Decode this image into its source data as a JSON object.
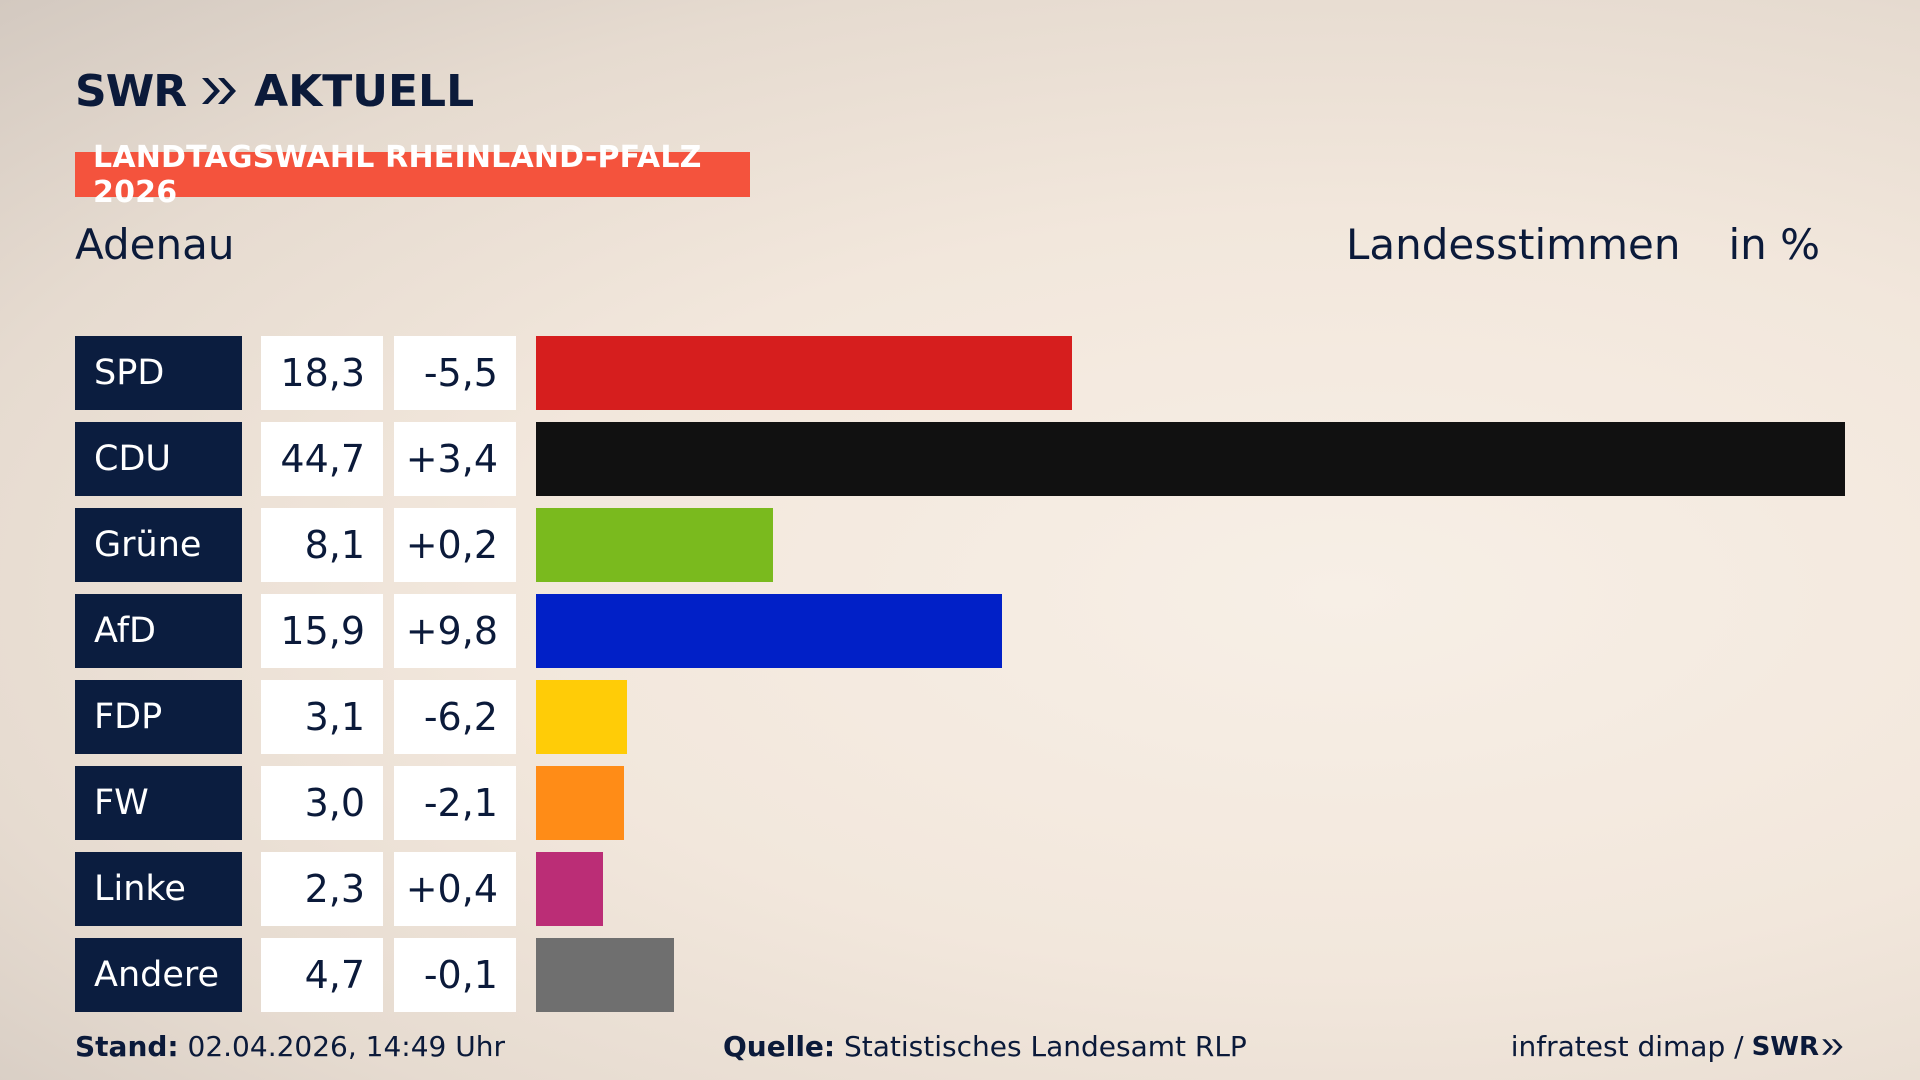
{
  "header": {
    "brand_left": "SWR",
    "brand_right": "AKTUELL",
    "banner": "LANDTAGSWAHL RHEINLAND-PFALZ 2026"
  },
  "subheader": {
    "region": "Adenau",
    "measure_label": "Landesstimmen",
    "unit": "in %"
  },
  "chart_data": {
    "type": "bar",
    "orientation": "horizontal",
    "categories": [
      "SPD",
      "CDU",
      "Grüne",
      "AfD",
      "FDP",
      "FW",
      "Linke",
      "Andere"
    ],
    "values": [
      18.3,
      44.7,
      8.1,
      15.9,
      3.1,
      3.0,
      2.3,
      4.7
    ],
    "value_labels": [
      "18,3",
      "44,7",
      "8,1",
      "15,9",
      "3,1",
      "3,0",
      "2,3",
      "4,7"
    ],
    "change_labels": [
      "-5,5",
      "+3,4",
      "+0,2",
      "+9,8",
      "-6,2",
      "-2,1",
      "+0,4",
      "-0,1"
    ],
    "colors": [
      "#d61e1e",
      "#111111",
      "#7aba1e",
      "#0120c7",
      "#ffcc07",
      "#ff8c17",
      "#bb2d76",
      "#6f6f6f"
    ],
    "xlim": [
      0,
      44.7
    ],
    "grid": false,
    "legend": "none"
  },
  "footer": {
    "stand_label": "Stand:",
    "stand_value": "02.04.2026, 14:49 Uhr",
    "source_label": "Quelle:",
    "source_value": "Statistisches Landesamt RLP",
    "credit": "infratest dimap /",
    "credit_brand": "SWR"
  }
}
